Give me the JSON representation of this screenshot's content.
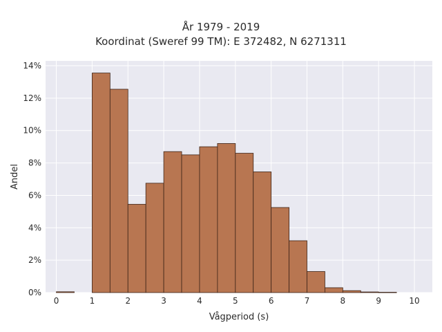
{
  "chart_data": {
    "type": "bar",
    "title_lines": [
      "År 1979 - 2019",
      "Koordinat (Sweref 99 TM): E 372482, N 6271311"
    ],
    "xlabel": "Vågperiod (s)",
    "ylabel": "Andel",
    "xlim": [
      -0.3,
      10.5
    ],
    "ylim": [
      0,
      14.3
    ],
    "x_ticks": [
      "0",
      "1",
      "2",
      "3",
      "4",
      "5",
      "6",
      "7",
      "8",
      "9",
      "10"
    ],
    "y_ticks": [
      "0%",
      "2%",
      "4%",
      "6%",
      "8%",
      "10%",
      "12%",
      "14%"
    ],
    "bin_width": 0.5,
    "bins": [
      {
        "x0": 0.0,
        "value": 0.05
      },
      {
        "x0": 0.5,
        "value": 0.0
      },
      {
        "x0": 1.0,
        "value": 13.55
      },
      {
        "x0": 1.5,
        "value": 12.55
      },
      {
        "x0": 2.0,
        "value": 5.45
      },
      {
        "x0": 2.5,
        "value": 6.75
      },
      {
        "x0": 3.0,
        "value": 8.7
      },
      {
        "x0": 3.5,
        "value": 8.5
      },
      {
        "x0": 4.0,
        "value": 9.0
      },
      {
        "x0": 4.5,
        "value": 9.2
      },
      {
        "x0": 5.0,
        "value": 8.6
      },
      {
        "x0": 5.5,
        "value": 7.45
      },
      {
        "x0": 6.0,
        "value": 5.25
      },
      {
        "x0": 6.5,
        "value": 3.2
      },
      {
        "x0": 7.0,
        "value": 1.3
      },
      {
        "x0": 7.5,
        "value": 0.3
      },
      {
        "x0": 8.0,
        "value": 0.12
      },
      {
        "x0": 8.5,
        "value": 0.04
      },
      {
        "x0": 9.0,
        "value": 0.02
      }
    ],
    "grid": true,
    "colors": {
      "bar_fill": "#b87651",
      "bar_edge": "#3d2418",
      "plot_background": "#e9e9f1",
      "grid": "#ffffff",
      "text": "#2a2a2a"
    }
  }
}
